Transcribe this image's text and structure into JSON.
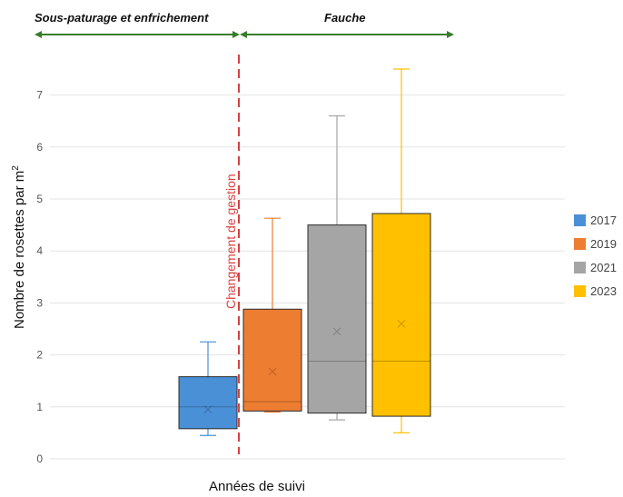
{
  "chart_data": {
    "type": "box",
    "xlabel": "Années de suivi",
    "ylabel": "Nombre de rosettes par m",
    "ylabel_sup": "2",
    "ylim": [
      0,
      7.5
    ],
    "yticks": [
      "0",
      "1",
      "2",
      "3",
      "4",
      "5",
      "6",
      "7"
    ],
    "grid": true,
    "legend_position": "right",
    "phases": [
      {
        "label": "Sous-paturage et enfrichement",
        "color": "#3a7d2c"
      },
      {
        "label": "Fauche",
        "color": "#3a7d2c"
      }
    ],
    "annotation": {
      "label": "Changement de gestion",
      "color": "#d94040"
    },
    "series": [
      {
        "name": "2017",
        "color": "#4a90d6",
        "min": 0.45,
        "q1": 0.58,
        "median": 1.0,
        "mean": 0.95,
        "q3": 1.58,
        "max": 2.25
      },
      {
        "name": "2019",
        "color": "#ed7d31",
        "min": 0.9,
        "q1": 0.92,
        "median": 1.1,
        "mean": 1.68,
        "q3": 2.88,
        "max": 4.63
      },
      {
        "name": "2021",
        "color": "#a5a5a5",
        "min": 0.75,
        "q1": 0.88,
        "median": 1.88,
        "mean": 2.45,
        "q3": 4.5,
        "max": 6.6
      },
      {
        "name": "2023",
        "color": "#ffc000",
        "min": 0.5,
        "q1": 0.82,
        "median": 1.88,
        "mean": 2.6,
        "q3": 4.72,
        "max": 7.5
      }
    ]
  }
}
